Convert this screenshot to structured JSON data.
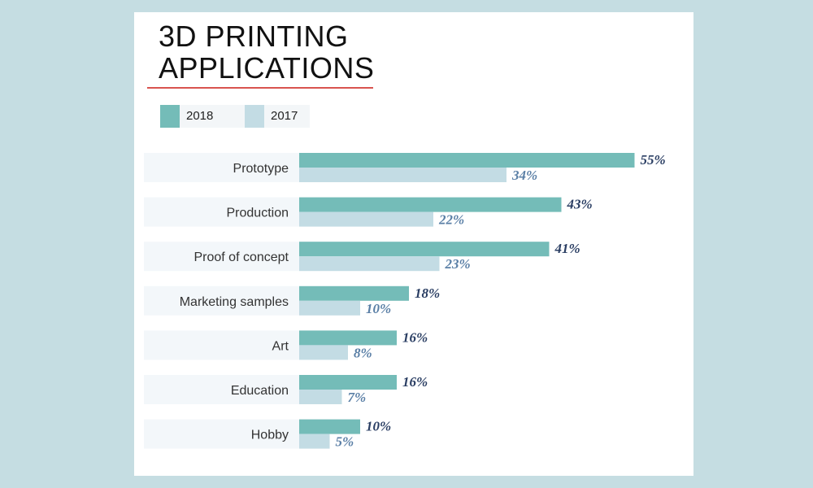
{
  "title_line1": "3D PRINTING",
  "title_line2": "APPLICATIONS",
  "colors": {
    "series_2018": "#74bcb8",
    "series_2017": "#c3dce4",
    "label_2018": "#2a3e63",
    "label_2017": "#5a7fa6",
    "row_band": "#f3f7fa",
    "legend_bg": "#f3f6f8",
    "title_rule": "#d9534f"
  },
  "chart_data": {
    "type": "bar",
    "orientation": "horizontal",
    "title": "3D PRINTING APPLICATIONS",
    "categories": [
      "Prototype",
      "Production",
      "Proof of concept",
      "Marketing samples",
      "Art",
      "Education",
      "Hobby"
    ],
    "series": [
      {
        "name": "2018",
        "values": [
          55,
          43,
          41,
          18,
          16,
          16,
          10
        ],
        "labels": [
          "55%",
          "43%",
          "41%",
          "18%",
          "16%",
          "16%",
          "10%"
        ]
      },
      {
        "name": "2017",
        "values": [
          34,
          22,
          23,
          10,
          8,
          7,
          5
        ],
        "labels": [
          "34%",
          "22%",
          "23%",
          "10%",
          "8%",
          "7%",
          "5%"
        ]
      }
    ],
    "unit": "%",
    "legend_position": "top-left",
    "grid": false
  }
}
